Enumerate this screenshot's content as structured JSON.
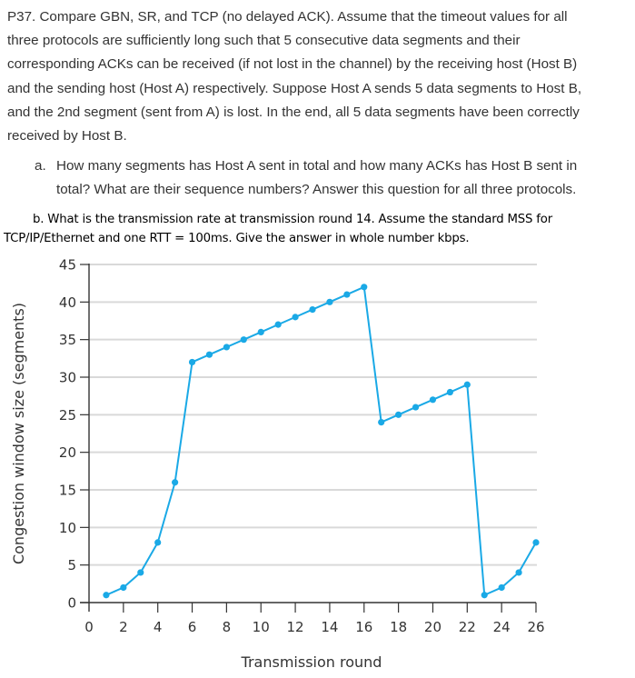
{
  "problem": {
    "intro_lines": [
      "P37. Compare GBN, SR, and TCP (no delayed ACK). Assume that the timeout values for all",
      "three protocols are sufficiently long such that 5 consecutive data segments and their",
      "corresponding ACKs can be received (if not lost in the channel) by the receiving host (Host B)",
      "and the sending host (Host A) respectively. Suppose Host A sends 5 data segments to Host B,",
      "and the 2nd segment (sent from A) is lost. In the end, all 5 data segments have been correctly",
      "received by Host B."
    ],
    "part_a": {
      "label": "a.",
      "line1": "How many segments has Host A sent in total and how many ACKs has Host B sent in",
      "line2": "total? What are their sequence numbers? Answer this question for all three protocols."
    },
    "part_b": {
      "line1": "b. What is the transmission rate at transmission round 14. Assume the standard MSS for",
      "line2": "TCP/IP/Ethernet and one RTT = 100ms. Give the answer in whole number kbps."
    }
  },
  "colors": {
    "series": "#1aa9e6",
    "axis": "#333333",
    "grid": "#d9d9d9",
    "text": "#333333"
  },
  "chart_data": {
    "type": "line",
    "title": "",
    "xlabel": "Transmission round",
    "ylabel": "Congestion window size (segments)",
    "xlim": [
      0,
      26
    ],
    "ylim": [
      0,
      45
    ],
    "xticks": [
      0,
      2,
      4,
      6,
      8,
      10,
      12,
      14,
      16,
      18,
      20,
      22,
      24,
      26
    ],
    "yticks": [
      0,
      5,
      10,
      15,
      20,
      25,
      30,
      35,
      40,
      45
    ],
    "grid": "horizontal",
    "legend": null,
    "x": [
      1,
      2,
      3,
      4,
      5,
      6,
      7,
      8,
      9,
      10,
      11,
      12,
      13,
      14,
      15,
      16,
      17,
      18,
      19,
      20,
      21,
      22,
      23,
      24,
      25,
      26
    ],
    "series": [
      {
        "name": "Congestion window",
        "values": [
          1,
          2,
          4,
          8,
          16,
          32,
          33,
          34,
          35,
          36,
          37,
          38,
          39,
          40,
          41,
          42,
          24,
          25,
          26,
          27,
          28,
          29,
          1,
          2,
          4,
          8
        ]
      }
    ]
  }
}
